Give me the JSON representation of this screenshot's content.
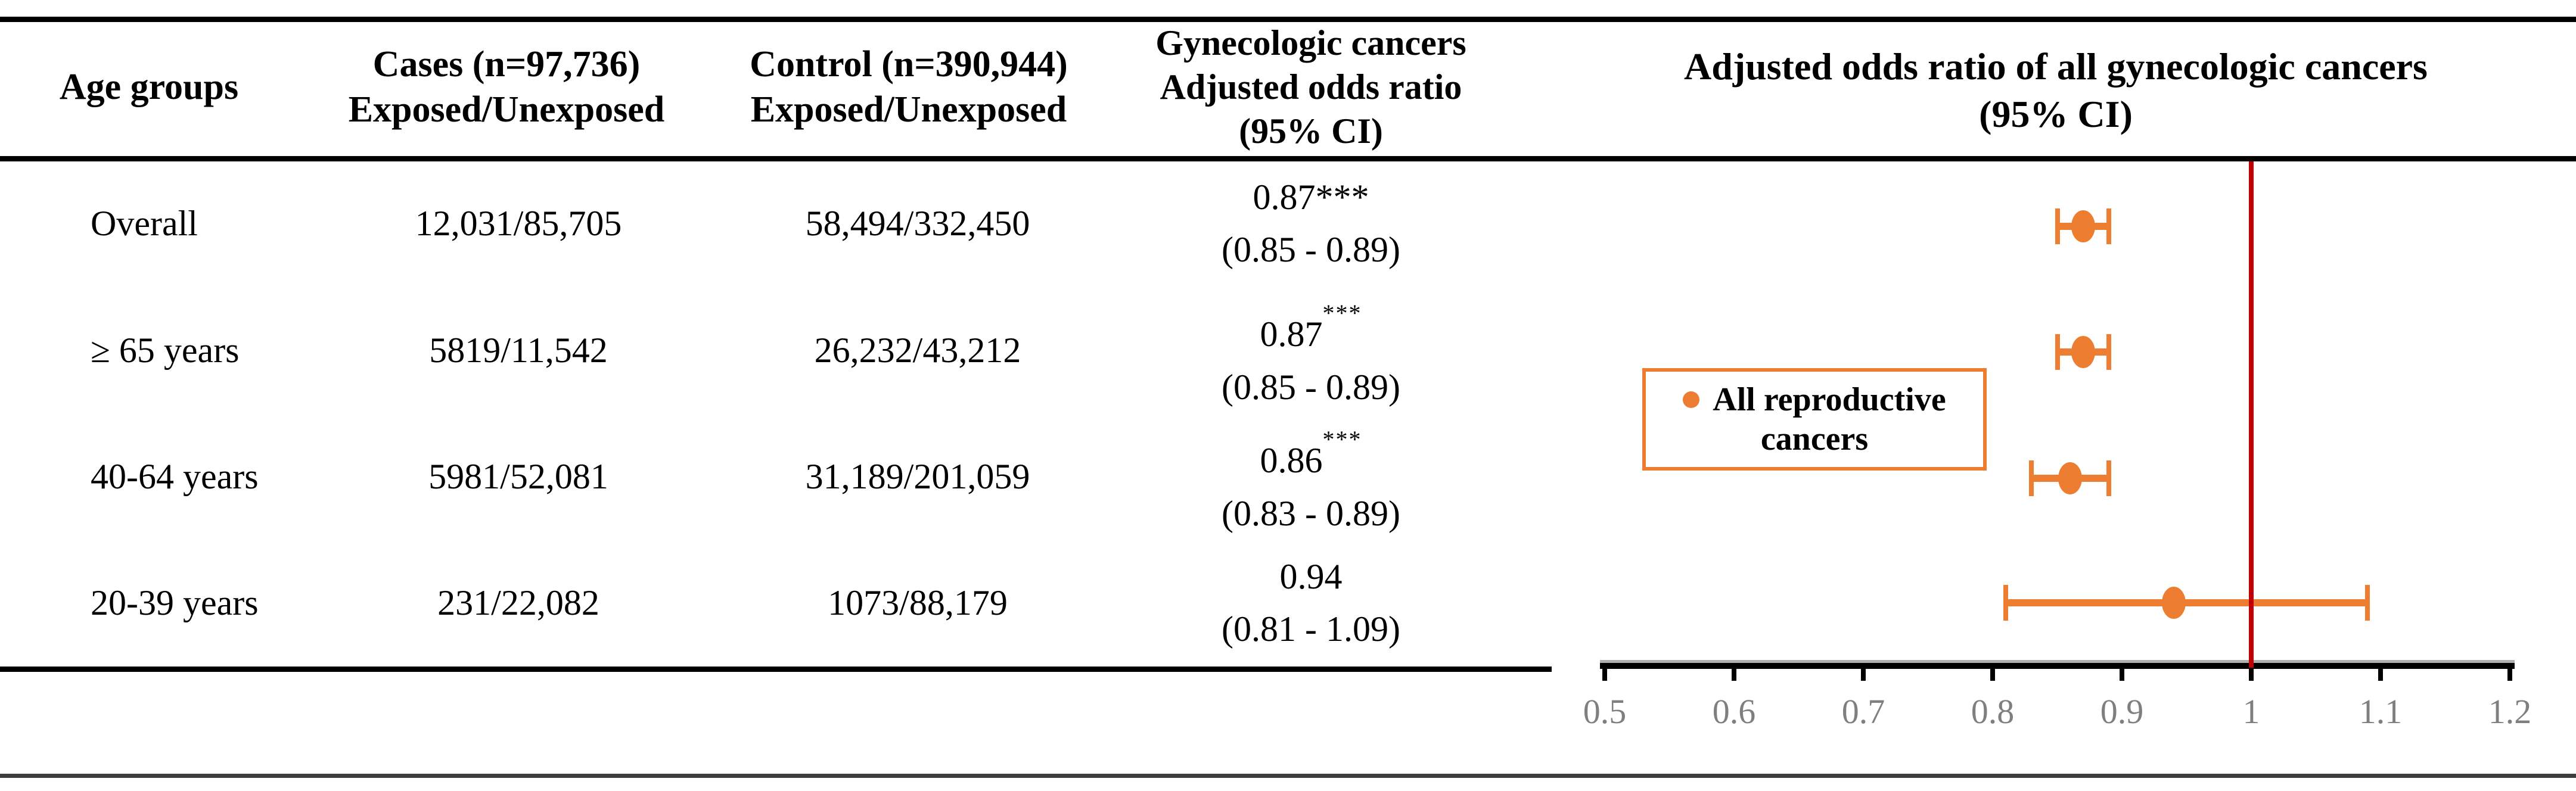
{
  "table": {
    "headers": {
      "age": "Age groups",
      "cases_line1": "Cases (n=97,736)",
      "cases_line2": "Exposed/Unexposed",
      "control_line1": "Control (n=390,944)",
      "control_line2": "Exposed/Unexposed",
      "outcome_line1": "Gynecologic cancers",
      "outcome_line2": "Adjusted odds ratio",
      "outcome_line3": "(95% CI)"
    },
    "rows": [
      {
        "age": "Overall",
        "cases": "12,031/85,705",
        "control": "58,494/332,450",
        "or_value": "0.87",
        "or_stars": "***",
        "or_ci": "(0.85 - 0.89)"
      },
      {
        "age": "≥ 65 years",
        "cases": "5819/11,542",
        "control": "26,232/43,212",
        "or_value": "0.87",
        "or_stars": "***",
        "or_ci": "(0.85 - 0.89)"
      },
      {
        "age": "40-64 years",
        "cases": "5981/52,081",
        "control": "31,189/201,059",
        "or_value": "0.86",
        "or_stars": "***",
        "or_ci": "(0.83 - 0.89)"
      },
      {
        "age": "20-39 years",
        "cases": "231/22,082",
        "control": "1073/88,179",
        "or_value": "0.94",
        "or_stars": "",
        "or_ci": "(0.81 - 1.09)"
      }
    ]
  },
  "plot": {
    "title_line1": "Adjusted odds ratio of all gynecologic cancers",
    "title_line2": "(95% CI)",
    "legend_line1": "All reproductive",
    "legend_line2": "cancers",
    "colors": {
      "marker": "#ED7D31",
      "reference_line": "#C00000",
      "tick_label": "#7F7F7F",
      "axis": "#000000"
    }
  },
  "chart_data": {
    "type": "scatter",
    "subtype": "forest-plot",
    "title": "Adjusted odds ratio of all gynecologic cancers (95% CI)",
    "xlim": [
      0.5,
      1.2
    ],
    "x_ticks": [
      0.5,
      0.6,
      0.7,
      0.8,
      0.9,
      1.0,
      1.1,
      1.2
    ],
    "x_tick_labels": [
      "0.5",
      "0.6",
      "0.7",
      "0.8",
      "0.9",
      "1",
      "1.1",
      "1.2"
    ],
    "reference_line_x": 1.0,
    "grid": false,
    "legend_position": "middle-left",
    "series": [
      {
        "name": "All reproductive cancers",
        "color": "#ED7D31",
        "points": [
          {
            "category": "Overall",
            "or": 0.87,
            "ci_low": 0.85,
            "ci_high": 0.89,
            "significance": "***"
          },
          {
            "category": "≥ 65 years",
            "or": 0.87,
            "ci_low": 0.85,
            "ci_high": 0.89,
            "significance": "***"
          },
          {
            "category": "40-64 years",
            "or": 0.86,
            "ci_low": 0.83,
            "ci_high": 0.89,
            "significance": "***"
          },
          {
            "category": "20-39 years",
            "or": 0.94,
            "ci_low": 0.81,
            "ci_high": 1.09,
            "significance": ""
          }
        ]
      }
    ]
  }
}
